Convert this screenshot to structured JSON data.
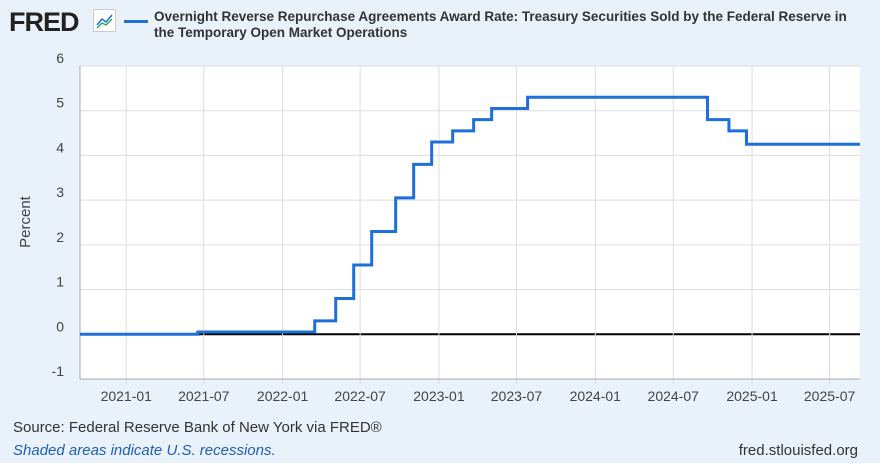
{
  "header": {
    "logo": "FRED",
    "title": "Overnight Reverse Repurchase Agreements Award Rate: Treasury Securities Sold by the Federal Reserve in the Temporary Open Market Operations"
  },
  "footer": {
    "source": "Source: Federal Reserve Bank of New York via FRED®",
    "recession_note": "Shaded areas indicate U.S. recessions.",
    "site": "fred.stlouisfed.org"
  },
  "chart_data": {
    "type": "line",
    "step": true,
    "title": "Overnight Reverse Repurchase Agreements Award Rate: Treasury Securities Sold by the Federal Reserve in the Temporary Open Market Operations",
    "ylabel": "Percent",
    "ylim": [
      -1,
      6
    ],
    "yticks": [
      "-1",
      "0",
      "1",
      "2",
      "3",
      "4",
      "5",
      "6"
    ],
    "xlim": [
      "2020-09-15",
      "2025-09-10"
    ],
    "xticks": [
      "2021-01",
      "2021-07",
      "2022-01",
      "2022-07",
      "2023-01",
      "2023-07",
      "2024-01",
      "2024-07",
      "2025-01",
      "2025-07"
    ],
    "grid": true,
    "color": "#1e6fd9",
    "series": [
      {
        "name": "Overnight Reverse Repurchase Agreements Award Rate",
        "points": [
          [
            "2020-09-15",
            0.0
          ],
          [
            "2021-06-17",
            0.05
          ],
          [
            "2022-03-17",
            0.3
          ],
          [
            "2022-05-05",
            0.8
          ],
          [
            "2022-06-16",
            1.55
          ],
          [
            "2022-07-28",
            2.3
          ],
          [
            "2022-09-22",
            3.05
          ],
          [
            "2022-11-03",
            3.8
          ],
          [
            "2022-12-15",
            4.3
          ],
          [
            "2023-02-02",
            4.55
          ],
          [
            "2023-03-23",
            4.8
          ],
          [
            "2023-05-04",
            5.05
          ],
          [
            "2023-07-27",
            5.3
          ],
          [
            "2024-09-19",
            4.8
          ],
          [
            "2024-11-08",
            4.55
          ],
          [
            "2024-12-19",
            4.25
          ],
          [
            "2025-09-10",
            4.25
          ]
        ]
      }
    ]
  }
}
